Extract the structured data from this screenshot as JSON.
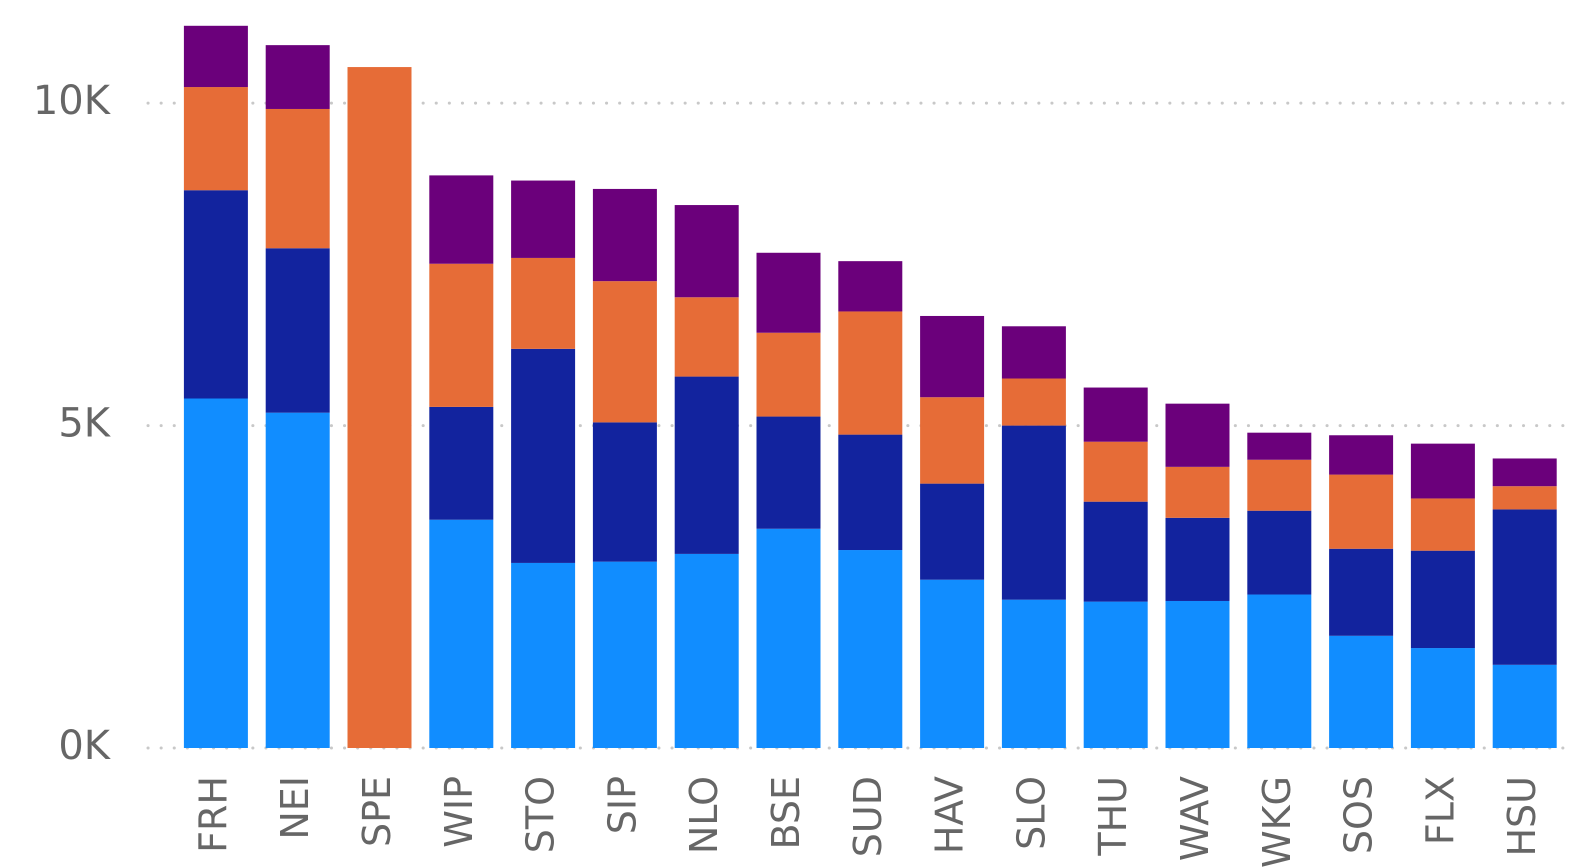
{
  "chart_data": {
    "type": "stacked_bar",
    "categories": [
      "FRH",
      "NEI",
      "SPE",
      "WIP",
      "STO",
      "SIP",
      "NLO",
      "BSE",
      "SUD",
      "HAV",
      "SLO",
      "THU",
      "WAV",
      "WKG",
      "SOS",
      "FLX",
      "HSU"
    ],
    "series": [
      {
        "color": "#118DFF",
        "values": [
          5420,
          5200,
          0,
          3540,
          2870,
          2890,
          3010,
          3400,
          3070,
          2610,
          2300,
          2270,
          2280,
          2380,
          1740,
          1550,
          1290
        ]
      },
      {
        "color": "#12239E",
        "values": [
          3230,
          2550,
          0,
          1750,
          3320,
          2160,
          2750,
          1740,
          1790,
          1490,
          2700,
          1550,
          1290,
          1300,
          1350,
          1510,
          2410
        ]
      },
      {
        "color": "#E66C37",
        "values": [
          1600,
          2160,
          10560,
          2220,
          1410,
          2190,
          1230,
          1300,
          1910,
          1340,
          730,
          930,
          790,
          790,
          1150,
          810,
          360
        ]
      },
      {
        "color": "#6B007B",
        "values": [
          950,
          990,
          0,
          1370,
          1200,
          1430,
          1430,
          1240,
          780,
          1260,
          810,
          840,
          980,
          420,
          610,
          850,
          430
        ]
      }
    ],
    "ylim": [
      0,
      11600
    ],
    "yticks": [
      {
        "value": 0,
        "label": "0K"
      },
      {
        "value": 5000,
        "label": "5K"
      },
      {
        "value": 10000,
        "label": "10K"
      }
    ],
    "grid": true
  }
}
